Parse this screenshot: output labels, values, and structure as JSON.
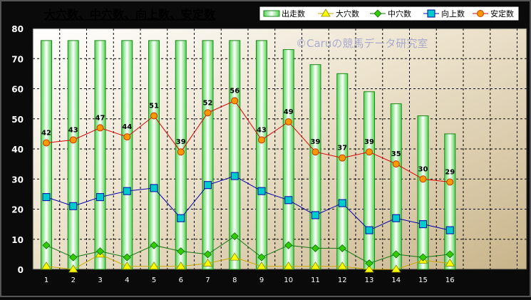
{
  "chart_data": {
    "type": "bar",
    "title": "大穴数、中穴数、向上数、安定数",
    "watermark": "©Caruの競馬データ研究室",
    "categories": [
      "1",
      "2",
      "3",
      "4",
      "5",
      "6",
      "7",
      "8",
      "9",
      "10",
      "11",
      "12",
      "13",
      "14",
      "15",
      "16"
    ],
    "ylim": [
      0,
      80
    ],
    "yticks": [
      "0",
      "10",
      "20",
      "30",
      "40",
      "50",
      "60",
      "70",
      "80"
    ],
    "grid": true,
    "legend_position": "top",
    "series": [
      {
        "name": "出走数",
        "type": "bar",
        "color": "#33cc33",
        "values": [
          76,
          76,
          76,
          76,
          76,
          76,
          76,
          76,
          76,
          73,
          68,
          65,
          59,
          55,
          51,
          45
        ]
      },
      {
        "name": "大穴数",
        "type": "line",
        "marker": "triangle",
        "color": "#ffff00",
        "values": [
          1,
          0,
          5,
          1,
          1,
          1,
          2,
          4,
          1,
          1,
          1,
          1,
          0,
          0,
          3,
          2
        ]
      },
      {
        "name": "中穴数",
        "type": "line",
        "marker": "diamond",
        "color": "#33cc00",
        "values": [
          8,
          4,
          6,
          4,
          8,
          6,
          5,
          11,
          4,
          8,
          7,
          7,
          2,
          5,
          4,
          5
        ]
      },
      {
        "name": "向上数",
        "type": "line",
        "marker": "square",
        "color": "#00cccc",
        "values": [
          24,
          21,
          24,
          26,
          27,
          17,
          28,
          31,
          26,
          23,
          18,
          22,
          13,
          17,
          15,
          13
        ]
      },
      {
        "name": "安定数",
        "type": "line",
        "marker": "circle",
        "color": "#ff9900",
        "values": [
          42,
          43,
          47,
          44,
          51,
          39,
          52,
          56,
          43,
          49,
          39,
          37,
          39,
          35,
          30,
          29
        ]
      }
    ],
    "data_labels": {
      "series": "安定数",
      "labels": [
        "42",
        "43",
        "47",
        "44",
        "51",
        "39",
        "52",
        "56",
        "43",
        "49",
        "39",
        "37",
        "39",
        "35",
        "30",
        "29"
      ]
    }
  }
}
